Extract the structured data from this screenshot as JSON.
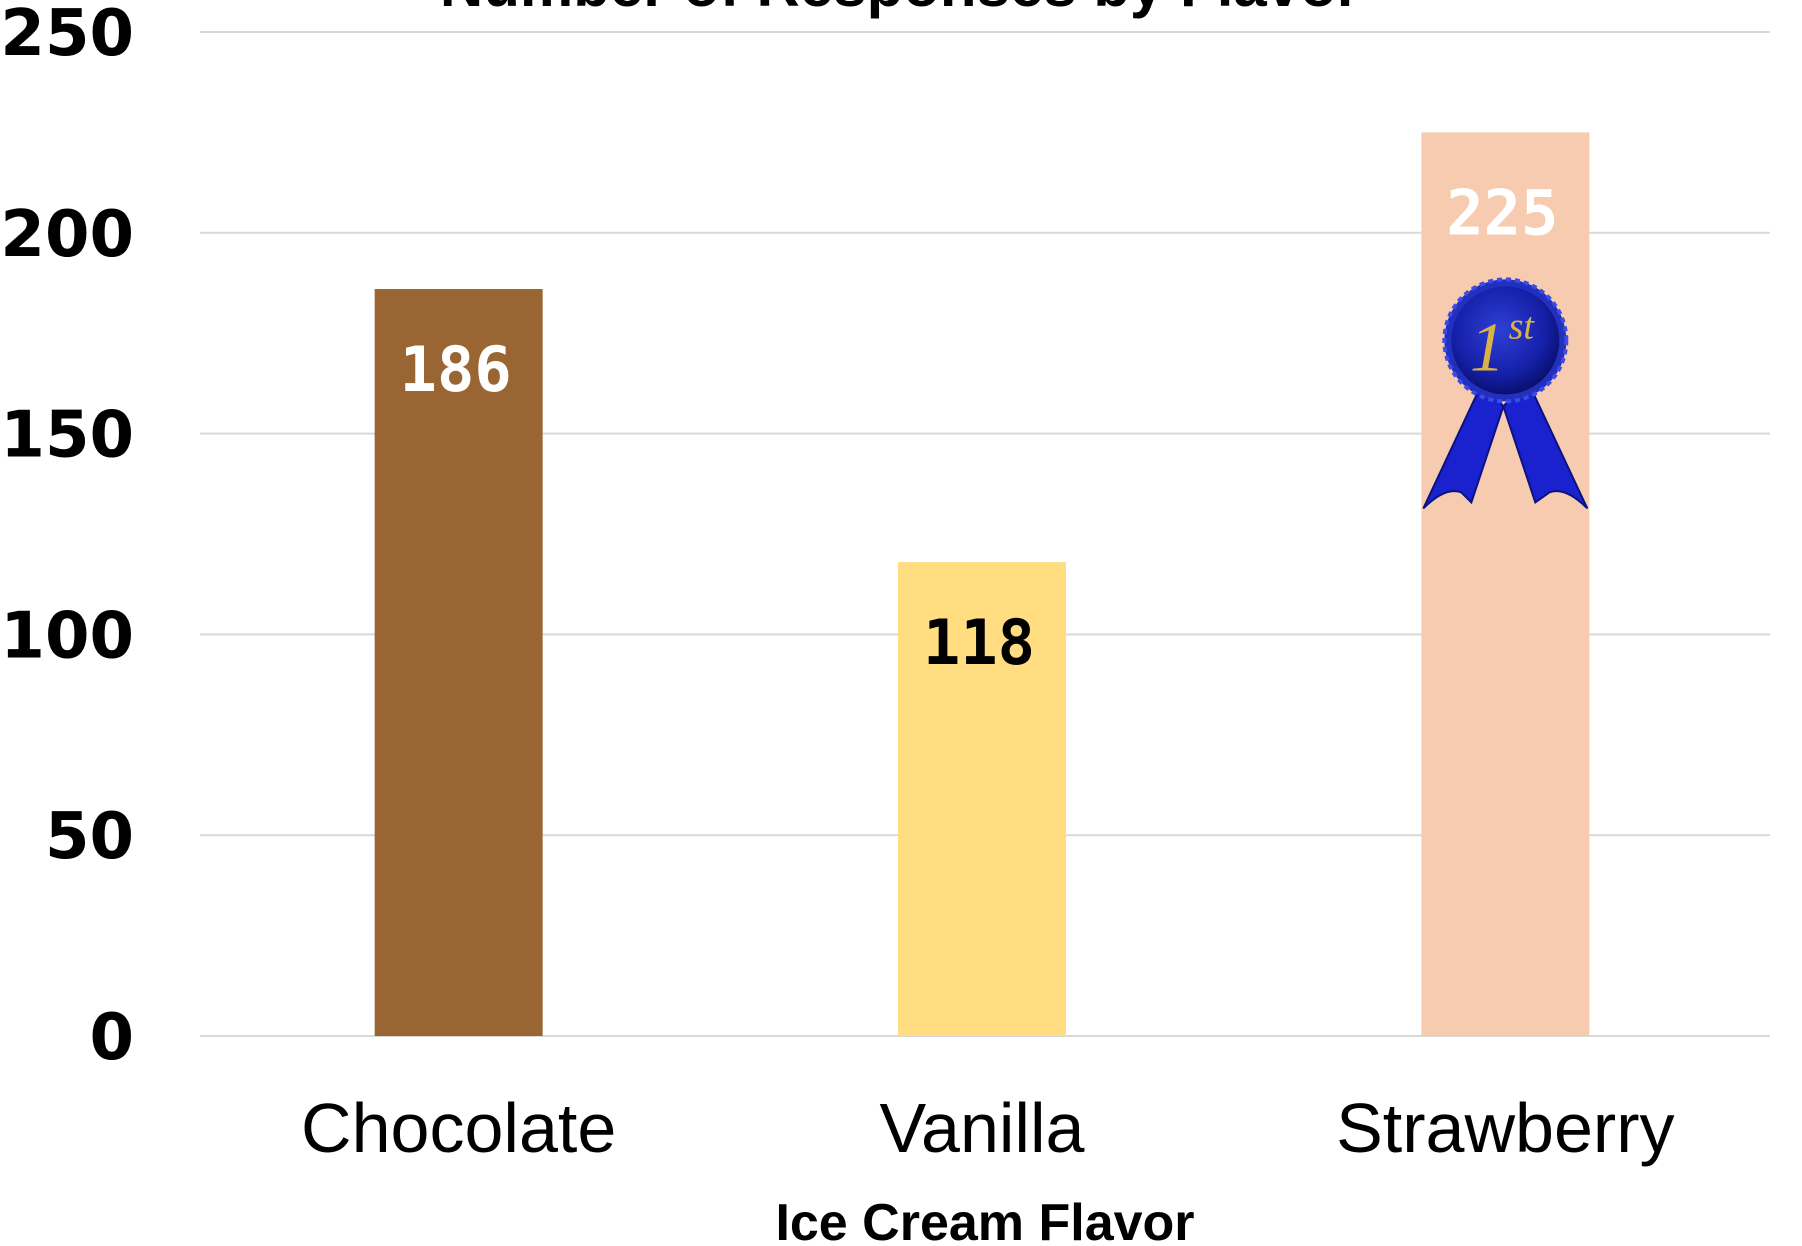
{
  "chart_data": {
    "type": "bar",
    "title": "Number of Responses by Flavor",
    "xlabel": "Ice Cream Flavor",
    "ylabel": "",
    "ylim": [
      0,
      250
    ],
    "yticks": [
      "0",
      "50",
      "100",
      "150",
      "200",
      "250"
    ],
    "grid": true,
    "categories": [
      "Chocolate",
      "Vanilla",
      "Strawberry"
    ],
    "values": [
      186,
      118,
      225
    ],
    "data_labels": [
      "186",
      "118",
      "225"
    ],
    "colors": [
      "#996633",
      "#ffdd80",
      "#f7cbaf"
    ],
    "label_colors": [
      "#ffffff",
      "#000000",
      "#ffffff"
    ],
    "annotation": {
      "category": "Strawberry",
      "icon": "first-place-ribbon-icon",
      "text_main": "1",
      "text_sup": "st"
    }
  }
}
